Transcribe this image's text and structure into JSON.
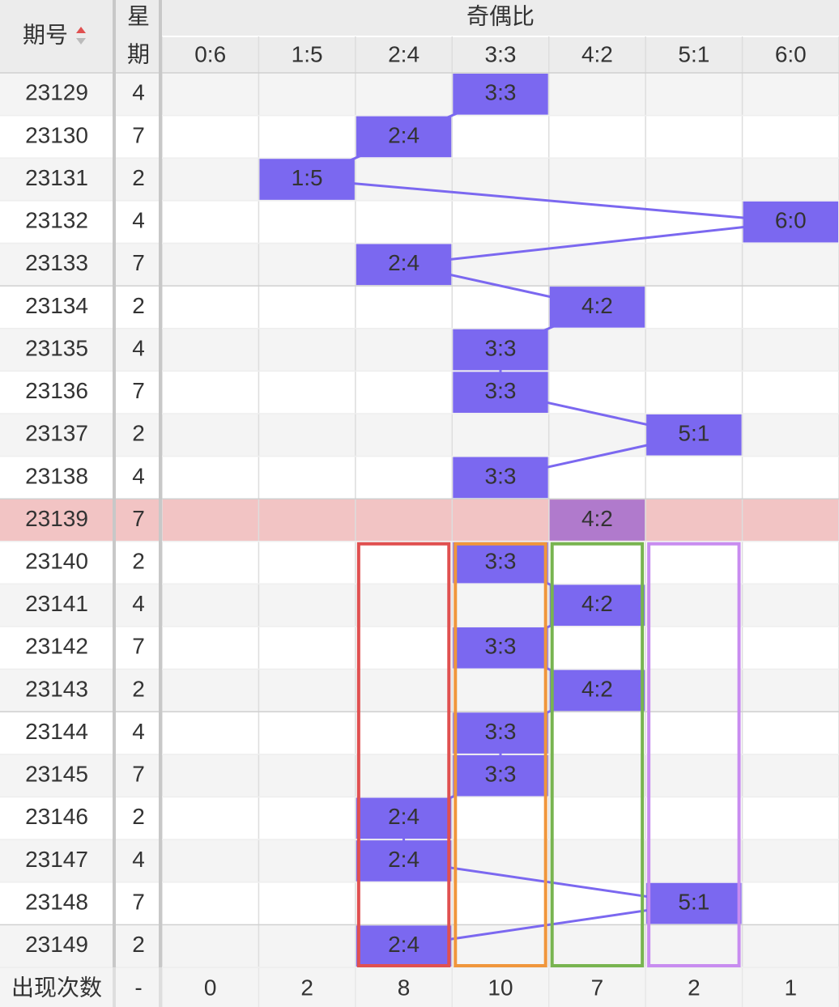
{
  "header": {
    "period": "期号",
    "weekday_top": "星",
    "weekday_bottom": "期",
    "group": "奇偶比",
    "columns": [
      "0:6",
      "1:5",
      "2:4",
      "3:3",
      "4:2",
      "5:1",
      "6:0"
    ]
  },
  "rows": [
    {
      "period": "23129",
      "weekday": "4",
      "ratio": "3:3"
    },
    {
      "period": "23130",
      "weekday": "7",
      "ratio": "2:4"
    },
    {
      "period": "23131",
      "weekday": "2",
      "ratio": "1:5"
    },
    {
      "period": "23132",
      "weekday": "4",
      "ratio": "6:0"
    },
    {
      "period": "23133",
      "weekday": "7",
      "ratio": "2:4"
    },
    {
      "period": "23134",
      "weekday": "2",
      "ratio": "4:2"
    },
    {
      "period": "23135",
      "weekday": "4",
      "ratio": "3:3"
    },
    {
      "period": "23136",
      "weekday": "7",
      "ratio": "3:3"
    },
    {
      "period": "23137",
      "weekday": "2",
      "ratio": "5:1"
    },
    {
      "period": "23138",
      "weekday": "4",
      "ratio": "3:3"
    },
    {
      "period": "23139",
      "weekday": "7",
      "ratio": "4:2",
      "highlighted": true
    },
    {
      "period": "23140",
      "weekday": "2",
      "ratio": "3:3"
    },
    {
      "period": "23141",
      "weekday": "4",
      "ratio": "4:2"
    },
    {
      "period": "23142",
      "weekday": "7",
      "ratio": "3:3"
    },
    {
      "period": "23143",
      "weekday": "2",
      "ratio": "4:2"
    },
    {
      "period": "23144",
      "weekday": "4",
      "ratio": "3:3"
    },
    {
      "period": "23145",
      "weekday": "7",
      "ratio": "3:3"
    },
    {
      "period": "23146",
      "weekday": "2",
      "ratio": "2:4"
    },
    {
      "period": "23147",
      "weekday": "4",
      "ratio": "2:4"
    },
    {
      "period": "23148",
      "weekday": "7",
      "ratio": "5:1"
    },
    {
      "period": "23149",
      "weekday": "2",
      "ratio": "2:4"
    }
  ],
  "footer": {
    "label": "出现次数",
    "weekday": "-",
    "counts": [
      "0",
      "2",
      "8",
      "10",
      "7",
      "2",
      "1"
    ]
  }
}
